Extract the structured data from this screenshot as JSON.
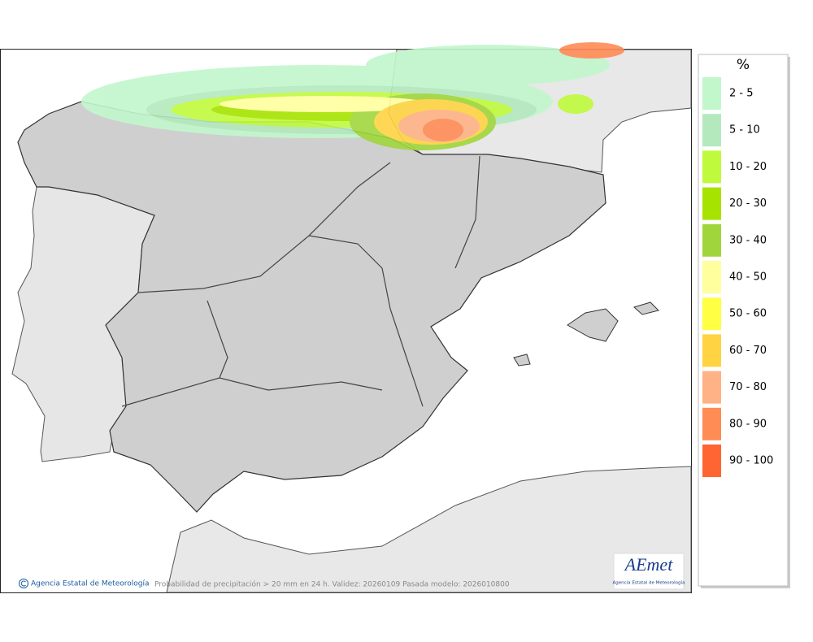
{
  "legend": {
    "title": "%",
    "items": [
      {
        "label": "2 - 5",
        "color": "#c2f7cc"
      },
      {
        "label": "5 - 10",
        "color": "#b3e9bd"
      },
      {
        "label": "10 - 20",
        "color": "#c0fa3c"
      },
      {
        "label": "20 - 30",
        "color": "#a6e300"
      },
      {
        "label": "30 - 40",
        "color": "#a0d63c"
      },
      {
        "label": "40 - 50",
        "color": "#ffff9e"
      },
      {
        "label": "50 - 60",
        "color": "#ffff44"
      },
      {
        "label": "60 - 70",
        "color": "#ffd342"
      },
      {
        "label": "70 - 80",
        "color": "#ffb286"
      },
      {
        "label": "80 - 90",
        "color": "#ff8b55"
      },
      {
        "label": "90 - 100",
        "color": "#ff6433"
      }
    ]
  },
  "footer": {
    "credit": "Agencia Estatal de Meteorología",
    "caption": "Probabilidad de precipitación > 20 mm en 24 h. Validez: 20260109 Pasada modelo: 2026010800"
  },
  "logo": {
    "text": "AEmet",
    "subtitle": "Agencia Estatal de Meteorología"
  }
}
